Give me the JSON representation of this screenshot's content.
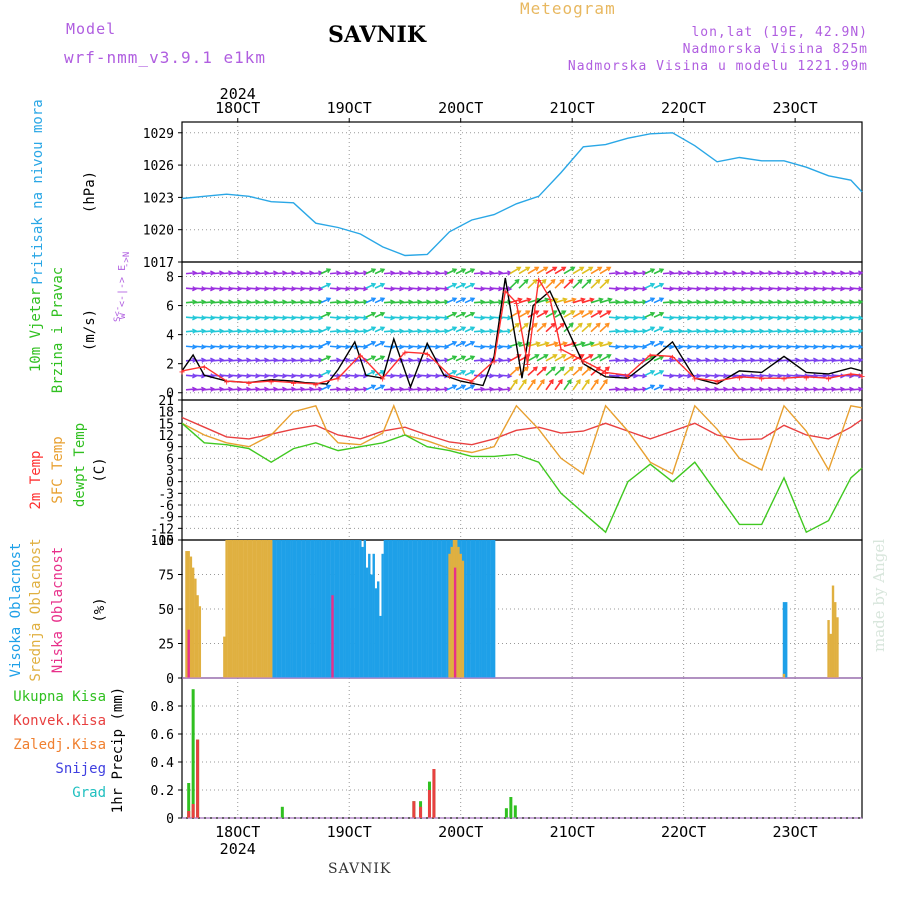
{
  "header": {
    "model_label": "Model",
    "model_version": "wrf-nmm_v3.9.1  e1km",
    "station": "SAVNIK",
    "meteogram": "Meteogram",
    "lonlat": "lon,lat (19E, 42.9N)",
    "altitude": "Nadmorska Visina 825m",
    "model_altitude": "Nadmorska Visina u modelu 1221.99m",
    "watermark": "made by Angel"
  },
  "chart_data": [
    {
      "type": "line",
      "panel": "pressure",
      "ylabels": [
        "Pritisak na nivou mora",
        "(hPa)"
      ],
      "ylim": [
        1017,
        1030
      ],
      "yticks": [
        1017,
        1020,
        1023,
        1026,
        1029
      ],
      "xlim": [
        0,
        6.1
      ],
      "x_tick_labels": [
        "18OCT",
        "19OCT",
        "20OCT",
        "21OCT",
        "22OCT",
        "23OCT"
      ],
      "year_label": "2024",
      "series": [
        {
          "color": "#2aa7e6",
          "x": [
            0,
            0.2,
            0.4,
            0.6,
            0.8,
            1.0,
            1.2,
            1.4,
            1.6,
            1.8,
            2.0,
            2.2,
            2.4,
            2.6,
            2.8,
            3.0,
            3.2,
            3.4,
            3.6,
            3.8,
            4.0,
            4.2,
            4.4,
            4.6,
            4.8,
            5.0,
            5.2,
            5.4,
            5.6,
            5.8,
            6.0,
            6.1
          ],
          "y": [
            1022.9,
            1023.1,
            1023.3,
            1023.1,
            1022.6,
            1022.5,
            1020.6,
            1020.2,
            1019.6,
            1018.4,
            1017.6,
            1017.7,
            1019.8,
            1020.9,
            1021.4,
            1022.4,
            1023.1,
            1025.3,
            1027.7,
            1027.9,
            1028.5,
            1028.9,
            1029.0,
            1027.8,
            1026.3,
            1026.7,
            1026.4,
            1026.4,
            1025.8,
            1025.0,
            1024.6,
            1023.5
          ]
        }
      ]
    },
    {
      "type": "line",
      "panel": "wind",
      "ylabels": [
        "10m Vjetar",
        "Brzina i Pravac",
        "(m/s)"
      ],
      "compass_label": "w <-|-> E",
      "compass_s": "S<-",
      "compass_n": "->N",
      "ylim": [
        -0.5,
        9
      ],
      "yticks": [
        0,
        2,
        4,
        6,
        8
      ],
      "xlim": [
        0,
        6.1
      ],
      "barb_colors": [
        "#9b30e0",
        "#7a40f0",
        "#1e90ff",
        "#22c8d8",
        "#30c040",
        "#e0c020",
        "#ff9020",
        "#ff3030"
      ],
      "series": [
        {
          "name": "speed",
          "color": "#000000",
          "x": [
            0,
            0.1,
            0.2,
            0.4,
            0.6,
            0.8,
            1.0,
            1.1,
            1.3,
            1.4,
            1.55,
            1.65,
            1.8,
            1.9,
            2.05,
            2.2,
            2.35,
            2.5,
            2.7,
            2.8,
            2.9,
            3.05,
            3.15,
            3.3,
            3.45,
            3.6,
            3.8,
            4.0,
            4.2,
            4.4,
            4.6,
            4.8,
            5.0,
            5.2,
            5.4,
            5.6,
            5.8,
            6.0,
            6.1
          ],
          "y": [
            1.5,
            2.6,
            1.2,
            0.8,
            0.7,
            0.9,
            0.8,
            0.7,
            0.6,
            1.6,
            3.5,
            1.2,
            1.0,
            3.7,
            0.4,
            3.4,
            1.2,
            0.8,
            0.5,
            2.5,
            7.9,
            1.0,
            6.0,
            7.0,
            4.5,
            2.0,
            1.1,
            1.0,
            2.2,
            3.5,
            1.0,
            0.6,
            1.5,
            1.4,
            2.5,
            1.4,
            1.3,
            1.7,
            1.5
          ]
        },
        {
          "name": "gust",
          "color": "#ff3030",
          "x": [
            0,
            0.2,
            0.4,
            0.6,
            0.8,
            1.0,
            1.2,
            1.4,
            1.6,
            1.8,
            2.0,
            2.2,
            2.4,
            2.6,
            2.8,
            2.9,
            3.0,
            3.1,
            3.2,
            3.3,
            3.4,
            3.6,
            3.8,
            4.0,
            4.2,
            4.4,
            4.6,
            4.8,
            5.0,
            5.2,
            5.4,
            5.6,
            5.8,
            6.0,
            6.1
          ],
          "y": [
            1.5,
            1.8,
            0.8,
            0.7,
            0.8,
            0.7,
            0.6,
            1.0,
            2.6,
            1.0,
            2.8,
            2.7,
            1.2,
            0.8,
            2.2,
            7.0,
            6.2,
            2.0,
            7.8,
            6.5,
            3.0,
            2.2,
            1.4,
            1.2,
            2.6,
            2.5,
            1.0,
            0.8,
            1.1,
            1.0,
            1.0,
            1.1,
            1.0,
            1.3,
            1.2
          ]
        }
      ]
    },
    {
      "type": "line",
      "panel": "temperature",
      "ylabels": [
        "2m Temp",
        "SFC Temp",
        "dewpt Temp",
        "(C)"
      ],
      "ylabel_colors": [
        "#ff3030",
        "#e8a030",
        "#30c020",
        "#000000"
      ],
      "ylim": [
        -15,
        21
      ],
      "yticks": [
        -15,
        -12,
        -9,
        -6,
        -3,
        0,
        3,
        6,
        9,
        12,
        15,
        18,
        21
      ],
      "xlim": [
        0,
        6.1
      ],
      "series": [
        {
          "name": "2m Temp",
          "color": "#e84040",
          "x": [
            0,
            0.2,
            0.4,
            0.6,
            0.8,
            1.0,
            1.2,
            1.4,
            1.6,
            1.8,
            2.0,
            2.2,
            2.4,
            2.6,
            2.8,
            3.0,
            3.2,
            3.4,
            3.6,
            3.8,
            4.0,
            4.2,
            4.4,
            4.6,
            4.8,
            5.0,
            5.2,
            5.4,
            5.6,
            5.8,
            6.0,
            6.1
          ],
          "y": [
            16.5,
            14.0,
            11.5,
            11.0,
            12.2,
            13.5,
            14.5,
            12.0,
            11.0,
            13.0,
            14.0,
            12.0,
            10.2,
            9.5,
            11.0,
            13.2,
            14.0,
            12.5,
            13.0,
            15.0,
            13.0,
            11.0,
            13.0,
            15.0,
            12.0,
            10.8,
            11.0,
            14.5,
            12.0,
            11.0,
            14.0,
            16.0
          ]
        },
        {
          "name": "SFC Temp",
          "color": "#e8a030",
          "x": [
            0,
            0.2,
            0.4,
            0.6,
            0.8,
            1.0,
            1.2,
            1.3,
            1.4,
            1.6,
            1.8,
            1.9,
            2.0,
            2.2,
            2.4,
            2.6,
            2.8,
            3.0,
            3.2,
            3.4,
            3.6,
            3.8,
            4.0,
            4.2,
            4.4,
            4.6,
            4.8,
            5.0,
            5.2,
            5.4,
            5.6,
            5.8,
            6.0,
            6.1
          ],
          "y": [
            15.0,
            12.0,
            10.0,
            9.0,
            12.0,
            18.0,
            19.5,
            13.0,
            10.0,
            9.5,
            12.5,
            19.5,
            12.0,
            10.5,
            8.5,
            7.5,
            9.0,
            19.5,
            13.5,
            6.0,
            2.0,
            19.5,
            13.0,
            5.0,
            2.0,
            19.5,
            13.5,
            6.0,
            3.0,
            19.5,
            13.0,
            3.0,
            19.5,
            19.0
          ]
        },
        {
          "name": "dewpt Temp",
          "color": "#40c820",
          "x": [
            0,
            0.2,
            0.4,
            0.6,
            0.8,
            1.0,
            1.2,
            1.4,
            1.6,
            1.8,
            2.0,
            2.2,
            2.4,
            2.6,
            2.8,
            3.0,
            3.2,
            3.4,
            3.6,
            3.8,
            4.0,
            4.2,
            4.4,
            4.6,
            4.8,
            5.0,
            5.2,
            5.4,
            5.6,
            5.8,
            6.0,
            6.1
          ],
          "y": [
            15.0,
            10.0,
            9.5,
            8.5,
            5.0,
            8.5,
            10.0,
            8.0,
            9.0,
            10.0,
            12.0,
            9.0,
            8.0,
            6.5,
            6.5,
            7.0,
            5.0,
            -3.0,
            -8.0,
            -13.0,
            0.0,
            4.5,
            0.0,
            5.0,
            -3.0,
            -11.0,
            -11.0,
            1.0,
            -13.0,
            -10.0,
            1.0,
            3.5
          ]
        }
      ]
    },
    {
      "type": "bar",
      "panel": "cloud",
      "ylabels": [
        "Visoka Oblacnost",
        "Srednja Oblacnost",
        "Niska Oblacnost",
        "(%)"
      ],
      "ylabel_colors": [
        "#1ea0e8",
        "#e0b040",
        "#e8308a",
        "#000000"
      ],
      "ylim": [
        0,
        100
      ],
      "yticks": [
        0,
        25,
        50,
        75,
        100
      ],
      "xlim": [
        0,
        6.1
      ],
      "series": [
        {
          "name": "high",
          "color": "#1ea0e8",
          "x": [
            0.82,
            0.84,
            0.86,
            0.88,
            0.9,
            0.92,
            0.94,
            0.96,
            0.98,
            1.0,
            1.02,
            1.04,
            1.06,
            1.08,
            1.1,
            1.12,
            1.14,
            1.16,
            1.18,
            1.2,
            1.22,
            1.24,
            1.26,
            1.28,
            1.3,
            1.32,
            1.34,
            1.36,
            1.38,
            1.4,
            1.42,
            1.44,
            1.46,
            1.48,
            1.5,
            1.52,
            1.54,
            1.56,
            1.58,
            1.6,
            1.62,
            1.64,
            1.66,
            1.68,
            1.7,
            1.72,
            1.74,
            1.76,
            1.78,
            1.8,
            1.82,
            1.84,
            1.86,
            1.88,
            1.9,
            1.92,
            1.94,
            1.96,
            1.98,
            2.0,
            2.02,
            2.04,
            2.06,
            2.08,
            2.1,
            2.12,
            2.14,
            2.16,
            2.18,
            2.2,
            2.22,
            2.24,
            2.26,
            2.28,
            2.3,
            2.32,
            2.34,
            2.36,
            2.38,
            2.4,
            2.42,
            2.44,
            2.46,
            2.48,
            2.5,
            2.52,
            2.54,
            2.56,
            2.58,
            2.6,
            2.62,
            2.64,
            2.66,
            2.68,
            2.7,
            2.72,
            2.74,
            2.76,
            2.78,
            2.8,
            5.4,
            5.42
          ],
          "y": [
            100,
            100,
            100,
            100,
            100,
            100,
            100,
            100,
            100,
            100,
            100,
            100,
            100,
            100,
            100,
            100,
            100,
            100,
            100,
            100,
            100,
            100,
            100,
            100,
            100,
            100,
            100,
            100,
            100,
            100,
            100,
            100,
            100,
            100,
            100,
            100,
            100,
            100,
            100,
            100,
            95,
            100,
            80,
            90,
            75,
            90,
            65,
            70,
            45,
            90,
            100,
            100,
            100,
            100,
            100,
            100,
            100,
            100,
            100,
            100,
            100,
            100,
            100,
            100,
            100,
            100,
            100,
            100,
            100,
            100,
            100,
            100,
            100,
            100,
            100,
            100,
            100,
            100,
            100,
            100,
            100,
            100,
            100,
            100,
            100,
            100,
            100,
            100,
            100,
            100,
            100,
            100,
            100,
            100,
            100,
            100,
            100,
            100,
            100,
            100,
            55,
            55
          ]
        },
        {
          "name": "mid",
          "color": "#e0b040",
          "x": [
            0.04,
            0.06,
            0.08,
            0.1,
            0.12,
            0.14,
            0.16,
            0.38,
            0.4,
            0.42,
            0.44,
            0.46,
            0.48,
            0.5,
            0.52,
            0.54,
            0.56,
            0.58,
            0.6,
            0.62,
            0.64,
            0.66,
            0.68,
            0.7,
            0.72,
            0.74,
            0.76,
            0.78,
            0.8,
            2.4,
            2.42,
            2.44,
            2.46,
            2.48,
            2.5,
            2.52,
            5.4,
            5.8,
            5.82,
            5.84,
            5.86,
            5.88
          ],
          "y": [
            92,
            92,
            88,
            80,
            72,
            60,
            52,
            30,
            100,
            100,
            100,
            100,
            100,
            100,
            100,
            100,
            100,
            100,
            100,
            100,
            100,
            100,
            100,
            100,
            100,
            100,
            100,
            100,
            100,
            90,
            95,
            100,
            100,
            95,
            90,
            85,
            3,
            42,
            32,
            67,
            55,
            44
          ]
        },
        {
          "name": "low",
          "color": "#e8308a",
          "x": [
            0.06,
            1.35,
            2.45
          ],
          "y": [
            35,
            60,
            80
          ]
        }
      ]
    },
    {
      "type": "bar",
      "panel": "precip",
      "legend": [
        {
          "name": "Ukupna Kisa",
          "color": "#30c020"
        },
        {
          "name": "Konvek.Kisa",
          "color": "#e84040"
        },
        {
          "name": "Zaledj.Kisa",
          "color": "#f08030"
        },
        {
          "name": "Snijeg",
          "color": "#4040e0"
        },
        {
          "name": "Grad",
          "color": "#20c0c0"
        }
      ],
      "ylabel": "1hr Precip (mm)",
      "ylim": [
        0,
        1.0
      ],
      "yticks": [
        0,
        0.2,
        0.4,
        0.6,
        0.8
      ],
      "xlim": [
        0,
        6.1
      ],
      "x_tick_labels": [
        "18OCT",
        "19OCT",
        "20OCT",
        "21OCT",
        "22OCT",
        "23OCT"
      ],
      "year_label": "2024",
      "series": [
        {
          "name": "Ukupna Kisa",
          "color": "#30c020",
          "x": [
            0.06,
            0.1,
            0.14,
            0.9,
            2.08,
            2.14,
            2.22,
            2.26,
            2.91,
            2.95,
            2.99
          ],
          "y": [
            0.25,
            0.92,
            0.56,
            0.08,
            0.12,
            0.12,
            0.26,
            0.35,
            0.07,
            0.15,
            0.09
          ]
        },
        {
          "name": "Konvek.Kisa",
          "color": "#e84040",
          "x": [
            0.06,
            0.1,
            0.14,
            2.08,
            2.14,
            2.22,
            2.26
          ],
          "y": [
            0.05,
            0.1,
            0.56,
            0.12,
            0.08,
            0.2,
            0.35
          ]
        }
      ]
    }
  ]
}
